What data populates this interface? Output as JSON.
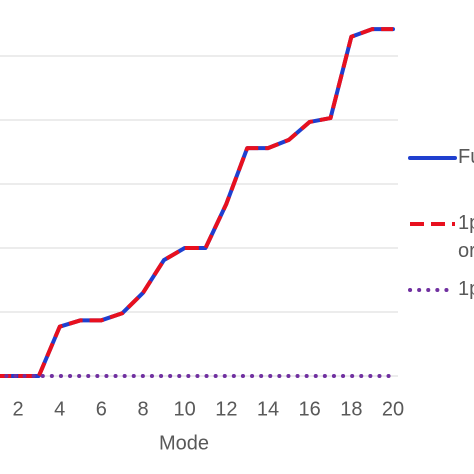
{
  "chart_data": {
    "type": "line",
    "x_label": "Mode",
    "x": [
      1,
      2,
      3,
      4,
      5,
      6,
      7,
      8,
      9,
      10,
      11,
      12,
      13,
      14,
      15,
      16,
      17,
      18,
      19,
      20
    ],
    "xlim": [
      1,
      20
    ],
    "xticks": [
      2,
      4,
      6,
      8,
      10,
      12,
      14,
      16,
      18,
      20
    ],
    "ylim": [
      0,
      5.875
    ],
    "grid_lines": [
      0,
      1,
      2,
      3,
      4,
      5
    ],
    "series": [
      {
        "name": "Fu",
        "color": "#1f3fcf",
        "style": "solid",
        "values": [
          0,
          0,
          0,
          0.77,
          0.87,
          0.87,
          0.98,
          1.3,
          1.81,
          2.0,
          2.0,
          2.69,
          3.56,
          3.56,
          3.69,
          3.97,
          4.03,
          5.3,
          5.42,
          5.42
        ]
      },
      {
        "name": "1p or",
        "color": "#e8101e",
        "style": "dashed",
        "values": [
          0,
          0,
          0,
          0.77,
          0.87,
          0.87,
          0.98,
          1.3,
          1.81,
          2.0,
          2.0,
          2.69,
          3.56,
          3.56,
          3.69,
          3.97,
          4.03,
          5.3,
          5.42,
          5.42
        ]
      },
      {
        "name": "1p",
        "color": "#7030a0",
        "style": "dotted",
        "values": [
          0,
          0,
          0,
          0,
          0,
          0,
          0,
          0,
          0,
          0,
          0,
          0,
          0,
          0,
          0,
          0,
          0,
          0,
          0,
          0
        ]
      }
    ]
  }
}
